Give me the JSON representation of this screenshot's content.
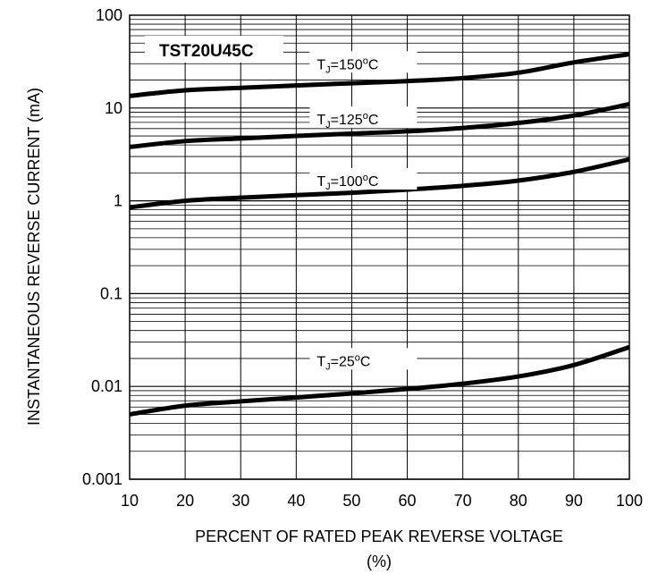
{
  "chart_data": {
    "type": "line",
    "title": "TST20U45C",
    "xlabel": "PERCENT OF RATED PEAK REVERSE VOLTAGE",
    "xlabel_unit": "(%)",
    "ylabel": "INSTANTANEOUS REVERSE CURRENT (mA)",
    "xlim": [
      10,
      100
    ],
    "ylim": [
      0.001,
      100
    ],
    "yscale": "log",
    "grid": true,
    "x_ticks": [
      "10",
      "20",
      "30",
      "40",
      "50",
      "60",
      "70",
      "80",
      "90",
      "100"
    ],
    "y_ticks": [
      "0.001",
      "0.01",
      "0.1",
      "1",
      "10",
      "100"
    ],
    "x": [
      10,
      20,
      30,
      40,
      50,
      60,
      70,
      80,
      90,
      100
    ],
    "series": [
      {
        "name": "TJ=150°C",
        "label": {
          "prefix": "T",
          "sub": "J",
          "mid": "=150",
          "sup": "o",
          "suffix": "C"
        },
        "values": [
          13.5,
          15.5,
          16.5,
          17.5,
          18.5,
          19.5,
          21,
          24,
          31,
          38
        ]
      },
      {
        "name": "TJ=125°C",
        "label": {
          "prefix": "T",
          "sub": "J",
          "mid": "=125",
          "sup": "o",
          "suffix": "C"
        },
        "values": [
          3.8,
          4.4,
          4.7,
          5.0,
          5.3,
          5.6,
          6.1,
          6.9,
          8.3,
          11
        ]
      },
      {
        "name": "TJ=100°C",
        "label": {
          "prefix": "T",
          "sub": "J",
          "mid": "=100",
          "sup": "o",
          "suffix": "C"
        },
        "values": [
          0.85,
          1.0,
          1.08,
          1.15,
          1.22,
          1.32,
          1.45,
          1.65,
          2.05,
          2.8
        ]
      },
      {
        "name": "TJ=25°C",
        "label": {
          "prefix": "T",
          "sub": "J",
          "mid": "=25",
          "sup": "o",
          "suffix": "C"
        },
        "values": [
          0.005,
          0.0062,
          0.0069,
          0.0076,
          0.0084,
          0.0094,
          0.0107,
          0.0128,
          0.017,
          0.0265
        ]
      }
    ]
  }
}
